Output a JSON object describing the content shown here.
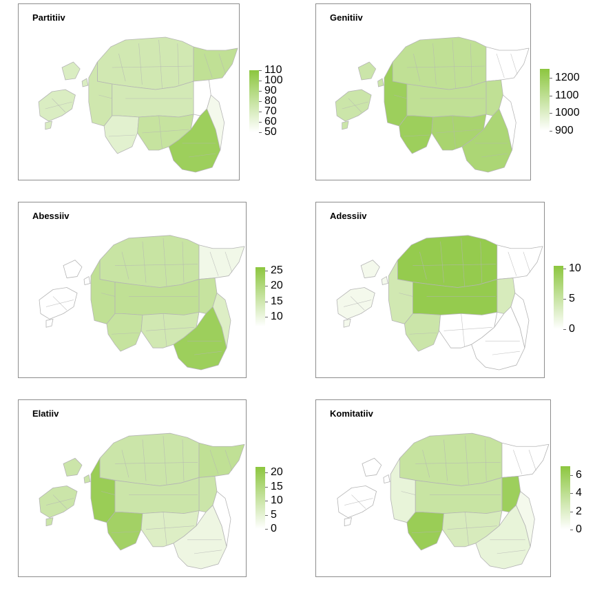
{
  "maps": [
    {
      "id": "partitiiv",
      "title": "Partitiiv",
      "legend": {
        "min": 50,
        "max": 110,
        "ticks": [
          "110",
          "100",
          "90",
          "80",
          "70",
          "60",
          "50"
        ]
      },
      "regions": {
        "islands": 0.32,
        "west": 0.42,
        "north": 0.4,
        "center": 0.38,
        "northeast": 0.55,
        "ida_coast": 0.0,
        "south": 0.5,
        "southeast": 0.85,
        "southwest": 0.25,
        "peipsi": 0.1
      }
    },
    {
      "id": "genitiiv",
      "title": "Genitiiv",
      "legend": {
        "min": 900,
        "max": 1250,
        "ticks": [
          "1200",
          "1100",
          "1000",
          "900"
        ]
      },
      "regions": {
        "islands": 0.45,
        "west": 0.85,
        "north": 0.55,
        "center": 0.55,
        "northeast": 0.0,
        "ida_coast": 0.55,
        "south": 0.75,
        "southeast": 0.72,
        "southwest": 0.85,
        "peipsi": 0.0
      }
    },
    {
      "id": "abessiiv",
      "title": "Abessiiv",
      "legend": {
        "min": 7,
        "max": 26,
        "ticks": [
          "25",
          "20",
          "15",
          "10"
        ]
      },
      "regions": {
        "islands": 0.0,
        "west": 0.55,
        "north": 0.48,
        "center": 0.55,
        "northeast": 0.12,
        "ida_coast": 0.5,
        "south": 0.4,
        "southeast": 0.85,
        "southwest": 0.5,
        "peipsi": 0.3
      }
    },
    {
      "id": "adessiiv",
      "title": "Adessiiv",
      "legend": {
        "min": 0,
        "max": 10.5,
        "ticks": [
          "10",
          "5",
          "0"
        ]
      },
      "regions": {
        "islands": 0.1,
        "west": 0.4,
        "north": 0.92,
        "center": 0.92,
        "northeast": 0.0,
        "ida_coast": 0.35,
        "south": 0.0,
        "southeast": 0.0,
        "southwest": 0.45,
        "peipsi": 0.0
      }
    },
    {
      "id": "elatiiv",
      "title": "Elatiiv",
      "legend": {
        "min": 0,
        "max": 22,
        "ticks": [
          "20",
          "15",
          "10",
          "5",
          "0"
        ]
      },
      "regions": {
        "islands": 0.45,
        "west": 0.88,
        "north": 0.45,
        "center": 0.45,
        "northeast": 0.55,
        "ida_coast": 0.45,
        "south": 0.3,
        "southeast": 0.15,
        "southwest": 0.8,
        "peipsi": 0.0
      }
    },
    {
      "id": "komitatiiv",
      "title": "Komitatiiv",
      "legend": {
        "min": 0,
        "max": 7,
        "ticks": [
          "6",
          "4",
          "2",
          "0"
        ]
      },
      "regions": {
        "islands": 0.0,
        "west": 0.2,
        "north": 0.5,
        "center": 0.48,
        "northeast": 0.0,
        "ida_coast": 0.85,
        "south": 0.35,
        "southeast": 0.2,
        "southwest": 0.88,
        "peipsi": 0.1
      }
    }
  ],
  "colors": {
    "low": "#ffffff",
    "high": "#8cc63f",
    "border": "#b4b4b4",
    "frame": "#8c8c8c"
  }
}
